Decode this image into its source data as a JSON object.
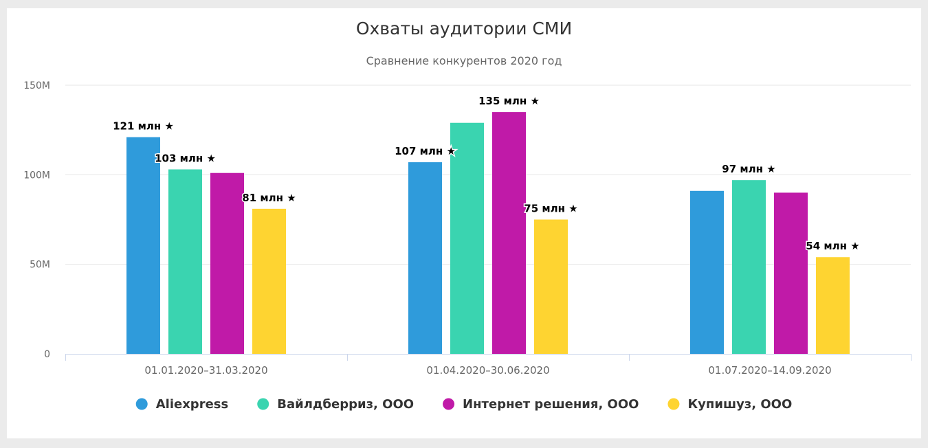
{
  "chart_data": {
    "type": "bar",
    "title": "Охваты аудитории СМИ",
    "subtitle": "Сравнение конкурентов 2020 год",
    "categories": [
      "01.01.2020–31.03.2020",
      "01.04.2020–30.06.2020",
      "01.07.2020–14.09.2020"
    ],
    "ylim": [
      0,
      150
    ],
    "yticks": [
      {
        "value": 0,
        "label": "0"
      },
      {
        "value": 50,
        "label": "50M"
      },
      {
        "value": 100,
        "label": "100M"
      },
      {
        "value": 150,
        "label": "150M"
      }
    ],
    "grid": true,
    "legend_position": "bottom-center",
    "series": [
      {
        "name": "Aliexpress",
        "color": "#2f9bdb",
        "values": [
          121,
          107,
          91
        ],
        "labels": [
          "121 млн ★",
          "107 млн ★",
          ""
        ]
      },
      {
        "name": "Вайлдберриз, ООО",
        "color": "#3ad4b0",
        "values": [
          103,
          129,
          97
        ],
        "labels": [
          "103 млн ★",
          "",
          "97 млн ★"
        ]
      },
      {
        "name": "Интернет решения, ООО",
        "color": "#c01aa8",
        "values": [
          101,
          135,
          90
        ],
        "labels": [
          "",
          "135 млн ★",
          ""
        ]
      },
      {
        "name": "Купишуз, ООО",
        "color": "#fed431",
        "values": [
          81,
          75,
          54
        ],
        "labels": [
          "81 млн ★",
          "75 млн ★",
          "54 млн ★"
        ]
      }
    ]
  }
}
